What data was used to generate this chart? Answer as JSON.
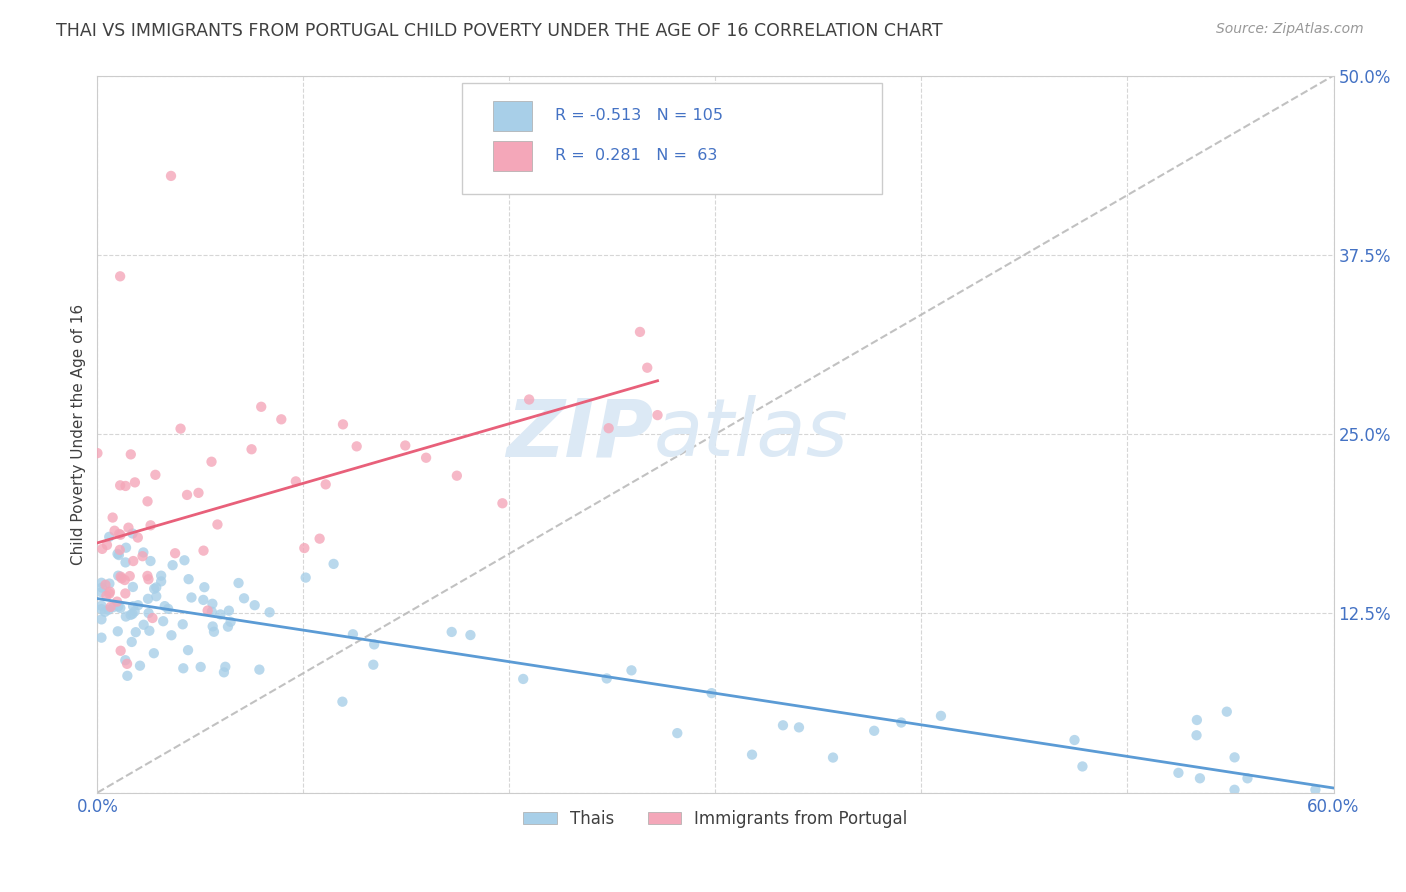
{
  "title": "THAI VS IMMIGRANTS FROM PORTUGAL CHILD POVERTY UNDER THE AGE OF 16 CORRELATION CHART",
  "source": "Source: ZipAtlas.com",
  "ylabel": "Child Poverty Under the Age of 16",
  "xlim": [
    0.0,
    0.6
  ],
  "ylim": [
    0.0,
    0.5
  ],
  "yticks": [
    0.0,
    0.125,
    0.25,
    0.375,
    0.5
  ],
  "xticks": [
    0.0,
    0.1,
    0.2,
    0.3,
    0.4,
    0.5,
    0.6
  ],
  "thai_R": -0.513,
  "thai_N": 105,
  "portugal_R": 0.281,
  "portugal_N": 63,
  "thai_color": "#a8cfe8",
  "thai_line_color": "#5b9bd5",
  "portugal_color": "#f4a7b9",
  "portugal_line_color": "#e8607a",
  "background_color": "#ffffff",
  "grid_color": "#cccccc",
  "title_color": "#404040",
  "axis_label_color": "#404040",
  "tick_label_color": "#4472c4",
  "legend_text_color": "#4472c4",
  "ref_line_color": "#cccccc",
  "watermark_color": "#dce9f5"
}
